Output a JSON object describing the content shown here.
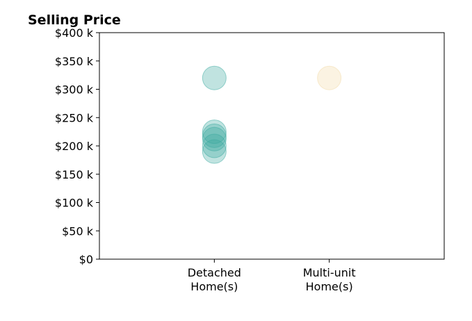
{
  "chart_data": {
    "type": "scatter",
    "title": "Selling Price",
    "xlabel": "",
    "ylabel": "",
    "categories": [
      "Detached\nHome(s)",
      "Multi-unit\nHome(s)"
    ],
    "y_ticks": [
      "$0",
      "$50 k",
      "$100 k",
      "$150 k",
      "$200 k",
      "$250 k",
      "$300 k",
      "$350 k",
      "$400 k"
    ],
    "ylim": [
      0,
      400000
    ],
    "xlim": [
      -1,
      2
    ],
    "grid": false,
    "legend": "none",
    "series": [
      {
        "category_index": 0,
        "color": "#3aa99f",
        "values": [
          320000,
          225000,
          218000,
          212000,
          200000,
          190000
        ]
      },
      {
        "category_index": 1,
        "color": "#f2d9a6",
        "values": [
          320000
        ]
      }
    ]
  }
}
